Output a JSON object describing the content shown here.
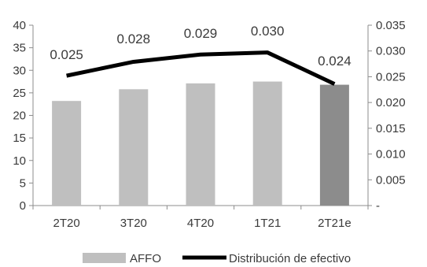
{
  "chart_data": {
    "type": "bar",
    "title": "",
    "categories": [
      "2T20",
      "3T20",
      "4T20",
      "1T21",
      "2T21e"
    ],
    "series": [
      {
        "name": "AFFO",
        "type": "bar",
        "axis": "left",
        "values": [
          23.2,
          25.8,
          27.1,
          27.5,
          26.8
        ],
        "color": "#bfbfbf",
        "highlight_index": 4,
        "highlight_color": "#8c8c8c"
      },
      {
        "name": "Distribución de efectivo",
        "type": "line",
        "axis": "right",
        "values": [
          0.025,
          0.028,
          0.029,
          0.03,
          0.024
        ],
        "labels": [
          "0.025",
          "0.028",
          "0.029",
          "0.030",
          "0.024"
        ],
        "color": "#000000",
        "y_plotted": [
          0.0252,
          0.0279,
          0.0293,
          0.0297,
          0.0236
        ]
      }
    ],
    "y_left": {
      "min": 0,
      "max": 40,
      "step": 5,
      "ticks": [
        "0",
        "5",
        "10",
        "15",
        "20",
        "25",
        "30",
        "35",
        "40"
      ]
    },
    "y_right": {
      "min": 0,
      "max": 0.035,
      "step": 0.005,
      "ticks": [
        "-",
        "0.005",
        "0.010",
        "0.015",
        "0.020",
        "0.025",
        "0.030",
        "0.035"
      ]
    },
    "grid": false,
    "legend": "bottom"
  }
}
